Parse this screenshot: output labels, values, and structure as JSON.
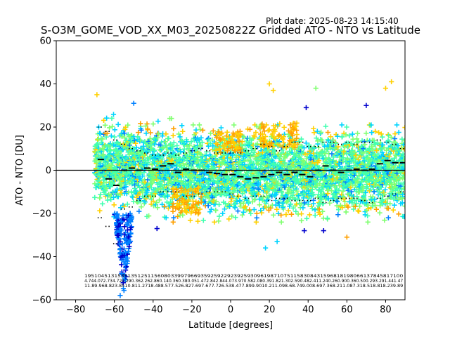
{
  "plot_date": "Plot date: 2025-08-23 14:15:40",
  "chart_data": {
    "type": "scatter",
    "title": "S-O3M_GOME_VOD_XX_M03_20250822Z Gridded ATO - NTO vs Latitude",
    "xlabel": "Latitude [degrees]",
    "ylabel": "ATO - NTO [DU]",
    "xlim": [
      -90,
      90
    ],
    "ylim": [
      -60,
      60
    ],
    "xticks": [
      -80,
      -60,
      -40,
      -20,
      0,
      20,
      40,
      60,
      80
    ],
    "xtick_labels": [
      "−80",
      "−60",
      "−40",
      "−20",
      "0",
      "20",
      "40",
      "60",
      "80"
    ],
    "yticks": [
      -60,
      -40,
      -20,
      0,
      20,
      40,
      60
    ],
    "ytick_labels": [
      "−60",
      "−40",
      "−20",
      "0",
      "20",
      "40",
      "60"
    ],
    "grid": false,
    "zero_line": 0,
    "marker": "+",
    "colormap": [
      "#0000cd",
      "#0080ff",
      "#00d4ff",
      "#40ffb0",
      "#80ff70",
      "#ffd000",
      "#ffa000"
    ],
    "bin_latitudes": [
      -67,
      -63,
      -59,
      -55,
      -51,
      -47,
      -43,
      -39,
      -35,
      -31,
      -27,
      -23,
      -19,
      -15,
      -11,
      -7,
      -3,
      1,
      5,
      9,
      13,
      17,
      21,
      25,
      29,
      33,
      37,
      41,
      45,
      49,
      53,
      57,
      61,
      65,
      69,
      73,
      77,
      81,
      85,
      89
    ],
    "bin_mean": [
      5,
      -4,
      -7,
      0,
      1,
      0,
      1,
      0.5,
      2,
      3,
      -1,
      0.5,
      0,
      0,
      -1,
      -1.5,
      -2,
      -2,
      -3,
      -4,
      -3.5,
      -3,
      -2,
      -1,
      -2,
      -1,
      -2,
      -3,
      0,
      2,
      0,
      -1,
      0,
      0.5,
      0,
      0.5,
      3,
      4.5,
      3.5,
      3.5
    ],
    "bin_upper": [
      20,
      18,
      14,
      12,
      10,
      9,
      8,
      7,
      7,
      8,
      7,
      8,
      9,
      10,
      9,
      8,
      8,
      8,
      8,
      9,
      10,
      12,
      11,
      9,
      11,
      13,
      13,
      11,
      11,
      13,
      13,
      12,
      13,
      12,
      13,
      13,
      14,
      13,
      12,
      10
    ],
    "bin_lower": [
      -22,
      -26,
      -34,
      -18,
      -17,
      -14,
      -12,
      -12,
      -10,
      -10,
      -10,
      -12,
      -12,
      -11,
      -10,
      -10,
      -10,
      -11,
      -12,
      -13,
      -12,
      -12,
      -14,
      -13,
      -13,
      -14,
      -14,
      -14,
      -13,
      -15,
      -14,
      -13,
      -13,
      -13,
      -14,
      -15,
      -13,
      -12,
      -11,
      -10
    ],
    "point_clusters": [
      {
        "lat_min": -70,
        "lat_max": -50,
        "y_min": -22,
        "y_max": 28
      },
      {
        "lat_min": -60,
        "lat_max": -52,
        "y_min": -58,
        "y_max": -20
      },
      {
        "lat_min": -50,
        "lat_max": -30,
        "y_min": -22,
        "y_max": 25
      },
      {
        "lat_min": -30,
        "lat_max": 90,
        "y_min": -24,
        "y_max": 22
      }
    ],
    "outliers": [
      {
        "lat": -69,
        "ddu": 35,
        "color": "#ffd000"
      },
      {
        "lat": -50,
        "ddu": 31,
        "color": "#0080ff"
      },
      {
        "lat": 20,
        "ddu": 40,
        "color": "#ffd000"
      },
      {
        "lat": 22,
        "ddu": 37,
        "color": "#ffd000"
      },
      {
        "lat": 39,
        "ddu": 29,
        "color": "#0000cd"
      },
      {
        "lat": 44,
        "ddu": 38,
        "color": "#80ff70"
      },
      {
        "lat": 70,
        "ddu": 30,
        "color": "#0000cd"
      },
      {
        "lat": 80,
        "ddu": 38,
        "color": "#ffd000"
      },
      {
        "lat": 83,
        "ddu": 41,
        "color": "#ffd000"
      },
      {
        "lat": 60,
        "ddu": -31,
        "color": "#ffa000"
      },
      {
        "lat": 38,
        "ddu": -28,
        "color": "#0000cd"
      },
      {
        "lat": 48,
        "ddu": -28,
        "color": "#0000cd"
      },
      {
        "lat": -38,
        "ddu": -27,
        "color": "#0000cd"
      },
      {
        "lat": -57,
        "ddu": -58,
        "color": "#0080ff"
      },
      {
        "lat": 18,
        "ddu": -36,
        "color": "#00d4ff"
      },
      {
        "lat": 24,
        "ddu": -33,
        "color": "#00d4ff"
      }
    ],
    "stats_rows": [
      "195104513153513512511560803399796693592592292392593096198710751158308431596818198066137845817100",
      "4.744.072.734.720.290.362.262.860.140.360.380.051.472.842.844.073.970.582.080.391.821.302.590.482.411.240.260.900.360.500.293.291.441.47",
      "11.89.968.823.8510.811.2718.488.577.526.827.697.677.726.538.477.899.9010.211.098.68.749.008.697.368.211.087.318.518.818.239.89"
    ]
  }
}
